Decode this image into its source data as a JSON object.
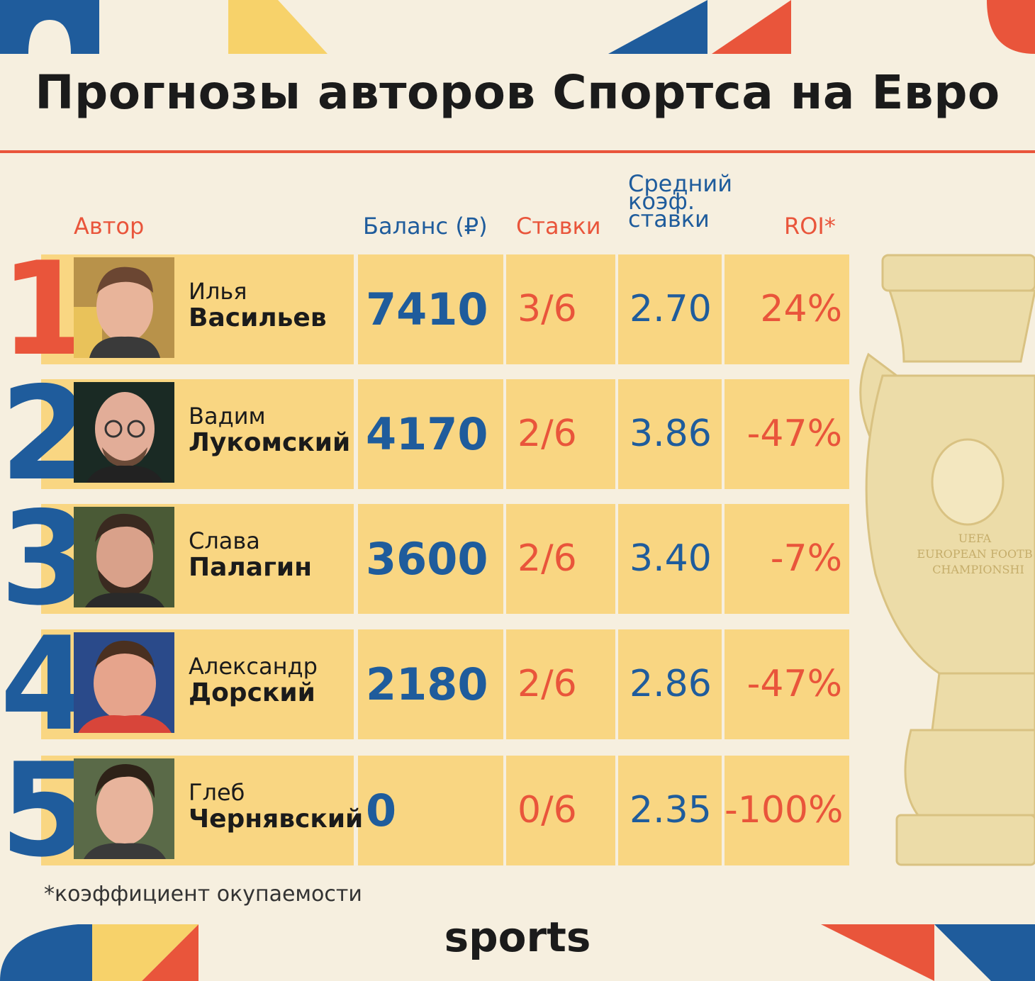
{
  "title": "Прогнозы авторов Спортса на Евро",
  "columns": {
    "author": "Автор",
    "balance": "Баланс (₽)",
    "bets": "Ставки",
    "coef_line1": "Средний",
    "coef_line2": "коэф.",
    "coef_line3": "ставки",
    "roi": "ROI*"
  },
  "rows": [
    {
      "rank": "1",
      "first": "Илья",
      "last": "Васильев",
      "balance": "7410",
      "bets": "3/6",
      "coef": "2.70",
      "roi": "24%"
    },
    {
      "rank": "2",
      "first": "Вадим",
      "last": "Лукомский",
      "balance": "4170",
      "bets": "2/6",
      "coef": "3.86",
      "roi": "-47%"
    },
    {
      "rank": "3",
      "first": "Слава",
      "last": "Палагин",
      "balance": "3600",
      "bets": "2/6",
      "coef": "3.40",
      "roi": "-7%"
    },
    {
      "rank": "4",
      "first": "Александр",
      "last": "Дорский",
      "balance": "2180",
      "bets": "2/6",
      "coef": "2.86",
      "roi": "-47%"
    },
    {
      "rank": "5",
      "first": "Глеб",
      "last": "Чернявский",
      "balance": "0",
      "bets": "0/6",
      "coef": "2.35",
      "roi": "-100%"
    }
  ],
  "trophy_text": {
    "line1": "UEFA",
    "line2": "EUROPEAN FOOTB",
    "line3": "CHAMPIONSHI"
  },
  "footnote": "*коэффициент окупаемости",
  "logo": "sports",
  "colors": {
    "background": "#f6efdf",
    "cell": "#f9d682",
    "red": "#e9553b",
    "blue": "#1f5c9c",
    "yellow": "#f7d26a"
  }
}
